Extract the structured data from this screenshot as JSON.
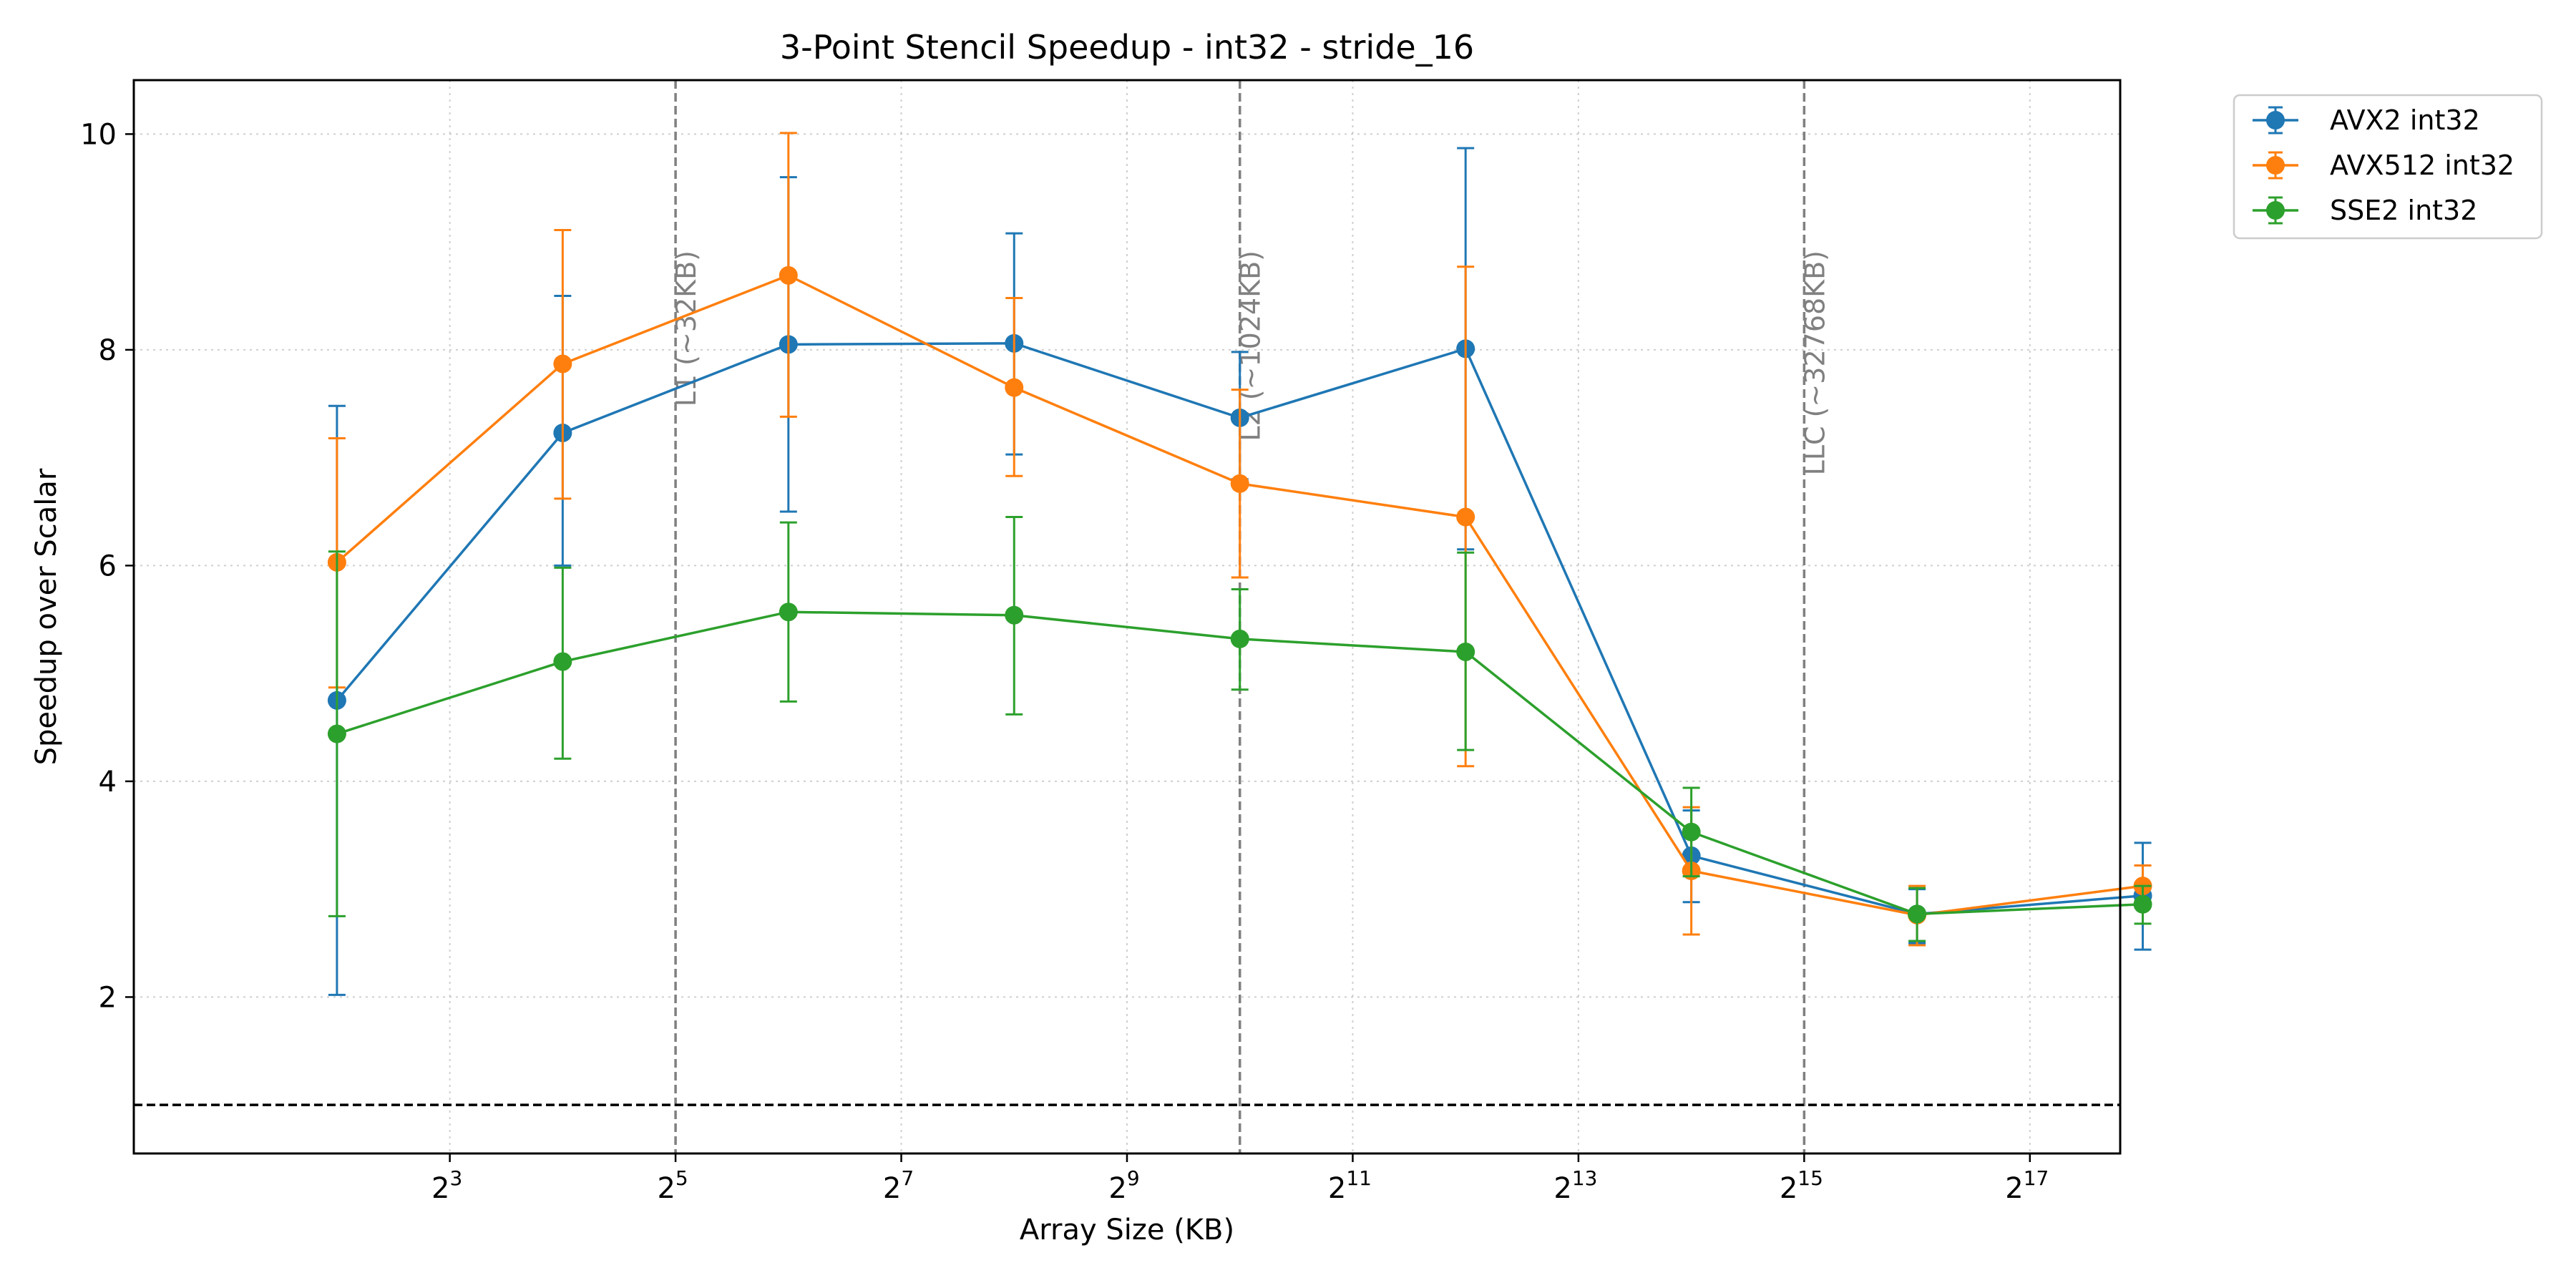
{
  "chart_data": {
    "type": "line",
    "title": "3-Point Stencil Speedup - int32 - stride_16",
    "xlabel": "Array Size (KB)",
    "ylabel": "Speedup over Scalar",
    "x_scale": "log2",
    "x": [
      4,
      16,
      64,
      256,
      1024,
      4096,
      16384,
      65536,
      262144
    ],
    "xlim_log2": [
      0.2,
      17.8
    ],
    "ylim": [
      0.55,
      10.5
    ],
    "x_ticks": [
      {
        "exp": 3,
        "base": "2",
        "sup": "3"
      },
      {
        "exp": 5,
        "base": "2",
        "sup": "5"
      },
      {
        "exp": 7,
        "base": "2",
        "sup": "7"
      },
      {
        "exp": 9,
        "base": "2",
        "sup": "9"
      },
      {
        "exp": 11,
        "base": "2",
        "sup": "11"
      },
      {
        "exp": 13,
        "base": "2",
        "sup": "13"
      },
      {
        "exp": 15,
        "base": "2",
        "sup": "15"
      },
      {
        "exp": 17,
        "base": "2",
        "sup": "17"
      }
    ],
    "y_ticks": [
      2,
      4,
      6,
      8,
      10
    ],
    "grid": true,
    "legend_position": "outside-top-right",
    "reference_line": {
      "y": 1.0,
      "style": "dashed",
      "color": "#000000"
    },
    "cache_lines": [
      {
        "x": 32,
        "label": "L1 (~32KB)"
      },
      {
        "x": 1024,
        "label": "L2 (~1024KB)"
      },
      {
        "x": 32768,
        "label": "LLC (~32768KB)"
      }
    ],
    "series": [
      {
        "name": "AVX2 int32",
        "color": "#1f77b4",
        "values": [
          4.75,
          7.23,
          8.05,
          8.06,
          7.37,
          8.01,
          3.31,
          2.77,
          2.94
        ],
        "err_low": [
          2.02,
          6.0,
          6.5,
          7.03,
          6.8,
          6.15,
          2.88,
          2.5,
          2.44
        ],
        "err_high": [
          7.48,
          8.5,
          9.6,
          9.08,
          7.98,
          9.87,
          3.73,
          3.0,
          3.43
        ]
      },
      {
        "name": "AVX512 int32",
        "color": "#ff7f0e",
        "values": [
          6.03,
          7.87,
          8.69,
          7.65,
          6.76,
          6.45,
          3.17,
          2.76,
          3.03
        ],
        "err_low": [
          4.87,
          6.62,
          7.38,
          6.83,
          5.89,
          4.14,
          2.58,
          2.48,
          2.84
        ],
        "err_high": [
          7.18,
          9.11,
          10.01,
          8.48,
          7.63,
          8.77,
          3.76,
          3.03,
          3.22
        ]
      },
      {
        "name": "SSE2 int32",
        "color": "#2ca02c",
        "values": [
          4.44,
          5.11,
          5.57,
          5.54,
          5.32,
          5.2,
          3.53,
          2.77,
          2.86
        ],
        "err_low": [
          2.75,
          4.21,
          4.74,
          4.62,
          4.85,
          4.29,
          3.12,
          2.52,
          2.68
        ],
        "err_high": [
          6.13,
          5.98,
          6.4,
          6.45,
          5.78,
          6.12,
          3.94,
          3.01,
          3.03
        ]
      }
    ]
  }
}
